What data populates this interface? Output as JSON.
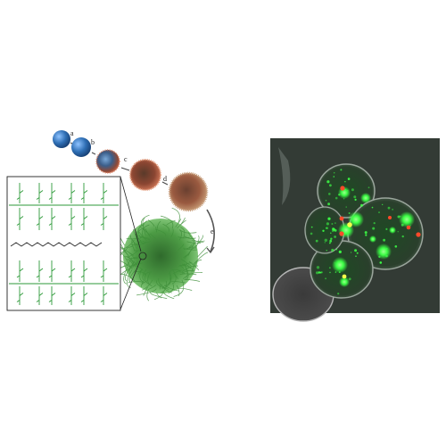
{
  "diagram": {
    "step_labels": [
      "a",
      "b",
      "c",
      "d",
      "e"
    ]
  },
  "colors": {
    "background": "#ffffff",
    "core_sphere": "#2f6fb5",
    "shell": "#b3543a",
    "polymer": "#3f8f3a",
    "schematic_line": "#2e9a3a",
    "micro_green": "#3cff45",
    "micro_red": "#ff4a2a",
    "micro_yellow": "#f5ff4a"
  },
  "icons": [
    "blue-sphere-icon",
    "coated-sphere-icon",
    "hairy-particle-icon",
    "curved-arrow-icon"
  ]
}
